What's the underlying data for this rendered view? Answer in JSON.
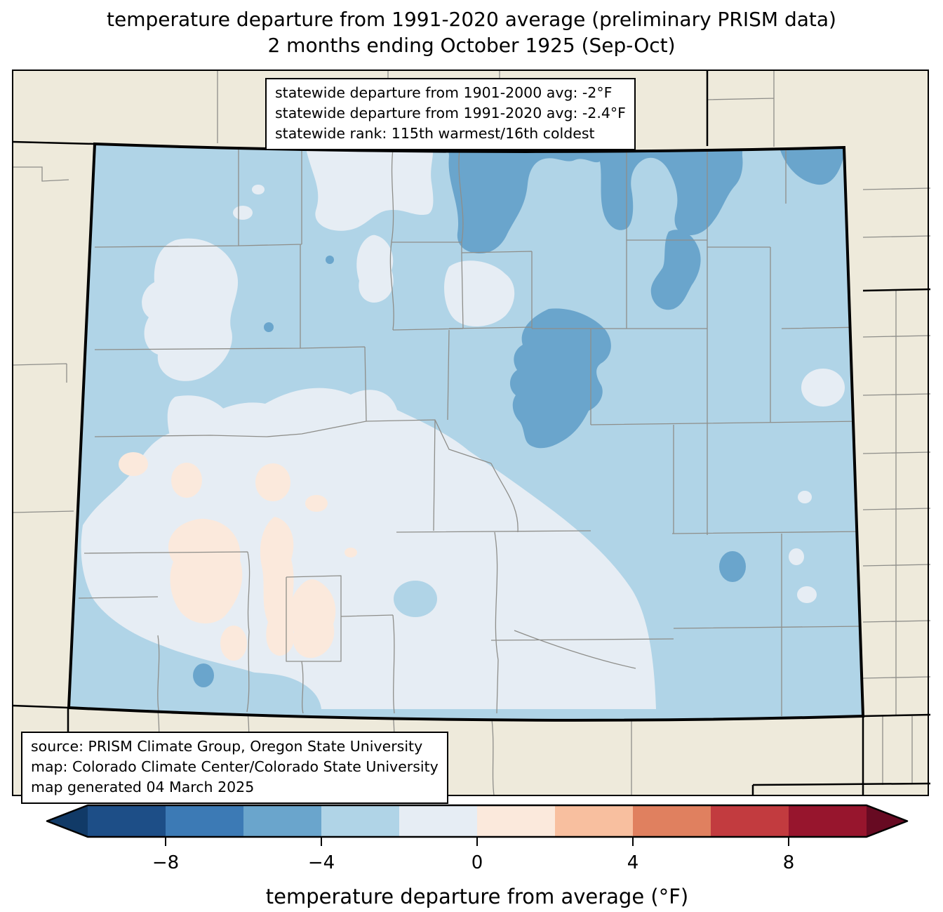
{
  "title": {
    "line1": "temperature departure from 1991-2020 average (preliminary PRISM data)",
    "line2": "2 months ending October 1925 (Sep-Oct)"
  },
  "stats_box": {
    "line1": "statewide departure from 1901-2000 avg: -2°F",
    "line2": "statewide departure from 1991-2020 avg: -2.4°F",
    "line3": "statewide rank: 115th warmest/16th coldest"
  },
  "source_box": {
    "line1": "source: PRISM Climate Group, Oregon State University",
    "line2": "map: Colorado Climate Center/Colorado State University",
    "line3": "map generated 04 March 2025"
  },
  "colorbar": {
    "label": "temperature departure from average (°F)",
    "ticks": [
      {
        "value": -8,
        "label": "−8"
      },
      {
        "value": -4,
        "label": "−4"
      },
      {
        "value": 0,
        "label": "0"
      },
      {
        "value": 4,
        "label": "4"
      },
      {
        "value": 8,
        "label": "8"
      }
    ],
    "bin_edges": [
      -10,
      -8,
      -6,
      -4,
      -2,
      0,
      2,
      4,
      6,
      8,
      10
    ],
    "segment_colors": [
      "#1d4e87",
      "#3c7ab5",
      "#6aa5cc",
      "#b0d4e7",
      "#e6edf4",
      "#fbe9dc",
      "#f8bf9f",
      "#e0805f",
      "#c23b3f",
      "#97152d"
    ],
    "arrow_left_color": "#113a67",
    "arrow_right_color": "#670a22"
  },
  "colors": {
    "figure_background": "#ffffff",
    "land": "#eeeadb",
    "bin_m6_m4": "#6aa5cc",
    "bin_m4_m2": "#b0d4e7",
    "bin_m2_0": "#e6edf4",
    "bin_0_p2": "#fbe9dc",
    "county_line": "#8e8e8a",
    "state_line": "#000000"
  },
  "map": {
    "region": "Colorado",
    "period": "Sep-Oct 1925",
    "units": "°F departure from average",
    "features": [
      {
        "name": "statewide base",
        "bin": "-4 to -2"
      },
      {
        "name": "north-central cold pocket (Larimer/Weld)",
        "bin": "-6 to -4"
      },
      {
        "name": "northeast corner band",
        "bin": "-6 to -4"
      },
      {
        "name": "Morgan county pocket",
        "bin": "-6 to -4"
      },
      {
        "name": "Front Range foothills pocket",
        "bin": "-6 to -4"
      },
      {
        "name": "southeast oval pocket",
        "bin": "-6 to -4"
      },
      {
        "name": "south-central border pocket",
        "bin": "-6 to -4"
      },
      {
        "name": "west and south-central mild region",
        "bin": "-2 to 0"
      },
      {
        "name": "eastern plains pale spots",
        "bin": "-2 to 0"
      },
      {
        "name": "San Juan / Sawatch warm patches",
        "bin": "0 to +2"
      }
    ]
  }
}
